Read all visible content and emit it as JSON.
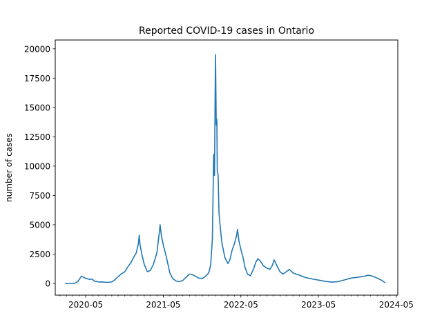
{
  "chart_data": {
    "type": "line",
    "title": "Reported COVID-19 cases in Ontario",
    "xlabel": "",
    "ylabel": "number of cases",
    "x_axis": {
      "kind": "date",
      "range": [
        "2019-12-10",
        "2024-05-08"
      ],
      "major_ticks": [
        "2020-05-01",
        "2021-05-01",
        "2022-05-01",
        "2023-05-01",
        "2024-05-01"
      ],
      "major_tick_labels": [
        "2020-05",
        "2021-05",
        "2022-05",
        "2023-05",
        "2024-05"
      ],
      "minor_ticks": "monthly"
    },
    "ylim": [
      -1000,
      20750
    ],
    "y_ticks": [
      0,
      2500,
      5000,
      7500,
      10000,
      12500,
      15000,
      17500,
      20000
    ],
    "grid": false,
    "legend": "none",
    "series": [
      {
        "color": "#1f77b4",
        "points": [
          [
            "2020-01-25",
            0
          ],
          [
            "2020-02-20",
            1
          ],
          [
            "2020-03-10",
            10
          ],
          [
            "2020-03-25",
            150
          ],
          [
            "2020-04-05",
            450
          ],
          [
            "2020-04-12",
            620
          ],
          [
            "2020-04-18",
            560
          ],
          [
            "2020-04-25",
            480
          ],
          [
            "2020-05-03",
            430
          ],
          [
            "2020-05-12",
            380
          ],
          [
            "2020-05-20",
            330
          ],
          [
            "2020-05-27",
            380
          ],
          [
            "2020-06-03",
            320
          ],
          [
            "2020-06-10",
            200
          ],
          [
            "2020-06-20",
            170
          ],
          [
            "2020-07-01",
            120
          ],
          [
            "2020-07-15",
            130
          ],
          [
            "2020-08-01",
            100
          ],
          [
            "2020-08-15",
            90
          ],
          [
            "2020-09-01",
            130
          ],
          [
            "2020-09-15",
            300
          ],
          [
            "2020-10-01",
            580
          ],
          [
            "2020-10-15",
            800
          ],
          [
            "2020-11-01",
            1000
          ],
          [
            "2020-11-15",
            1400
          ],
          [
            "2020-12-01",
            1800
          ],
          [
            "2020-12-15",
            2300
          ],
          [
            "2020-12-25",
            2600
          ],
          [
            "2021-01-04",
            3400
          ],
          [
            "2021-01-08",
            4100
          ],
          [
            "2021-01-12",
            3300
          ],
          [
            "2021-01-20",
            2500
          ],
          [
            "2021-02-01",
            1600
          ],
          [
            "2021-02-15",
            1000
          ],
          [
            "2021-03-01",
            1100
          ],
          [
            "2021-03-15",
            1600
          ],
          [
            "2021-04-01",
            2600
          ],
          [
            "2021-04-12",
            4300
          ],
          [
            "2021-04-16",
            5000
          ],
          [
            "2021-04-22",
            4100
          ],
          [
            "2021-05-01",
            3300
          ],
          [
            "2021-05-15",
            2300
          ],
          [
            "2021-06-01",
            900
          ],
          [
            "2021-06-15",
            400
          ],
          [
            "2021-07-01",
            200
          ],
          [
            "2021-07-15",
            150
          ],
          [
            "2021-08-01",
            250
          ],
          [
            "2021-08-15",
            500
          ],
          [
            "2021-09-01",
            800
          ],
          [
            "2021-09-15",
            750
          ],
          [
            "2021-10-01",
            600
          ],
          [
            "2021-10-15",
            450
          ],
          [
            "2021-11-01",
            420
          ],
          [
            "2021-11-15",
            600
          ],
          [
            "2021-12-01",
            900
          ],
          [
            "2021-12-10",
            1600
          ],
          [
            "2021-12-18",
            3800
          ],
          [
            "2021-12-24",
            11000
          ],
          [
            "2021-12-28",
            9200
          ],
          [
            "2021-12-31",
            16000
          ],
          [
            "2022-01-02",
            19500
          ],
          [
            "2022-01-05",
            13500
          ],
          [
            "2022-01-08",
            14000
          ],
          [
            "2022-01-10",
            9500
          ],
          [
            "2022-01-14",
            9300
          ],
          [
            "2022-01-18",
            6000
          ],
          [
            "2022-01-24",
            4800
          ],
          [
            "2022-02-01",
            3400
          ],
          [
            "2022-02-15",
            2200
          ],
          [
            "2022-03-01",
            1700
          ],
          [
            "2022-03-10",
            2000
          ],
          [
            "2022-03-20",
            2800
          ],
          [
            "2022-04-01",
            3400
          ],
          [
            "2022-04-10",
            4000
          ],
          [
            "2022-04-15",
            4600
          ],
          [
            "2022-04-22",
            3600
          ],
          [
            "2022-05-01",
            2900
          ],
          [
            "2022-05-10",
            2300
          ],
          [
            "2022-05-20",
            1400
          ],
          [
            "2022-06-01",
            800
          ],
          [
            "2022-06-15",
            650
          ],
          [
            "2022-07-01",
            1300
          ],
          [
            "2022-07-10",
            1800
          ],
          [
            "2022-07-20",
            2100
          ],
          [
            "2022-08-01",
            1900
          ],
          [
            "2022-08-15",
            1500
          ],
          [
            "2022-09-01",
            1300
          ],
          [
            "2022-09-15",
            1200
          ],
          [
            "2022-09-25",
            1500
          ],
          [
            "2022-10-05",
            2000
          ],
          [
            "2022-10-15",
            1600
          ],
          [
            "2022-11-01",
            1000
          ],
          [
            "2022-11-15",
            800
          ],
          [
            "2022-12-01",
            1000
          ],
          [
            "2022-12-15",
            1200
          ],
          [
            "2023-01-01",
            900
          ],
          [
            "2023-01-15",
            800
          ],
          [
            "2023-02-01",
            700
          ],
          [
            "2023-03-01",
            500
          ],
          [
            "2023-04-01",
            380
          ],
          [
            "2023-05-01",
            280
          ],
          [
            "2023-06-01",
            180
          ],
          [
            "2023-07-01",
            110
          ],
          [
            "2023-08-01",
            150
          ],
          [
            "2023-09-01",
            300
          ],
          [
            "2023-10-01",
            450
          ],
          [
            "2023-11-01",
            520
          ],
          [
            "2023-12-01",
            600
          ],
          [
            "2023-12-20",
            700
          ],
          [
            "2024-01-10",
            620
          ],
          [
            "2024-02-01",
            450
          ],
          [
            "2024-02-20",
            280
          ],
          [
            "2024-03-10",
            60
          ]
        ]
      }
    ]
  }
}
